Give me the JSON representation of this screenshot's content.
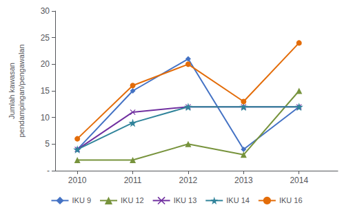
{
  "chart_data": {
    "type": "line",
    "x": [
      2010,
      2011,
      2012,
      2013,
      2014
    ],
    "series": [
      {
        "name": "IKU 9",
        "color": "#4472C4",
        "marker": "diamond",
        "values": [
          4,
          15,
          21,
          4,
          12
        ]
      },
      {
        "name": "IKU 12",
        "color": "#77933C",
        "marker": "triangle",
        "values": [
          2,
          2,
          5,
          3,
          15
        ]
      },
      {
        "name": "IKU 13",
        "color": "#7030A0",
        "marker": "x",
        "values": [
          4,
          11,
          12,
          12,
          12
        ]
      },
      {
        "name": "IKU 14",
        "color": "#31849B",
        "marker": "star",
        "values": [
          4,
          9,
          12,
          12,
          12
        ]
      },
      {
        "name": "IKU 16",
        "color": "#E36C09",
        "marker": "circle",
        "values": [
          6,
          16,
          20,
          13,
          24
        ]
      }
    ],
    "y_label": "Jumlah kawasan\npendampingan/pengawalan",
    "xlim": [
      2009.6,
      2014.7
    ],
    "xticks": [
      2010,
      2011,
      2012,
      2013,
      2014
    ],
    "ylim": [
      0,
      30
    ],
    "yticks": [
      {
        "value": 0,
        "label": "-"
      },
      5,
      10,
      15,
      20,
      25,
      30
    ],
    "grid": false,
    "legend": "bottom"
  }
}
